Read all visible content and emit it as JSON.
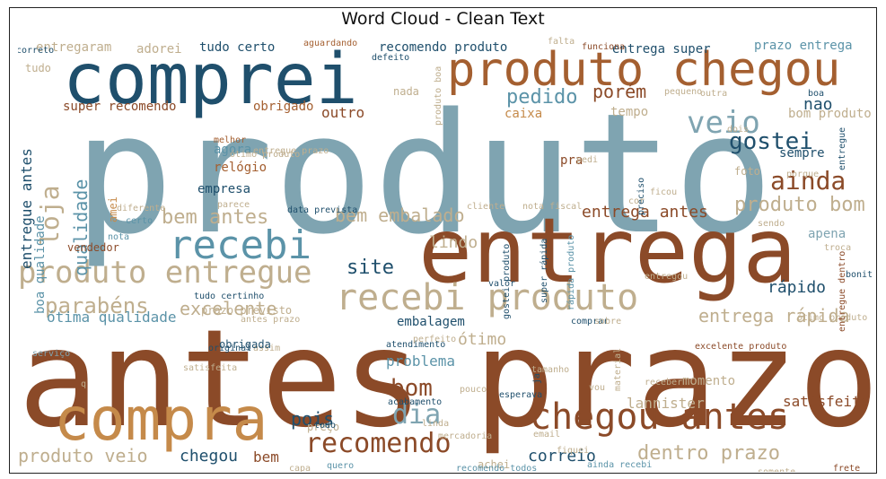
{
  "title": "Word Cloud - Clean Text",
  "palette": {
    "brown": "#8b4a28",
    "rust": "#a45f30",
    "tan": "#c58a4a",
    "beige": "#bfae8e",
    "lightbeige": "#d8cbb0",
    "navy": "#1f4f6c",
    "teal": "#5b93a8",
    "slate": "#7fa4b1",
    "lightblue": "#9ebdca"
  },
  "words": [
    "produto",
    "antes",
    "prazo",
    "entrega",
    "comprei",
    "produto chegou",
    "compra",
    "chegou antes",
    "recebi",
    "recebi produto",
    "produto entregue",
    "veio",
    "gostei",
    "ainda",
    "recomendo",
    "dia",
    "bom",
    "loja",
    "pedido",
    "porém",
    "nao",
    "bem antes",
    "produto bom",
    "bem embalado",
    "entrega antes",
    "site",
    "pois",
    "lannister",
    "dentro prazo",
    "produto veio",
    "correio",
    "chegou",
    "bem",
    "parabéns",
    "excelente",
    "ótima qualidade",
    "qualidade",
    "entregue antes",
    "boa qualidade",
    "super recomendo",
    "obrigado",
    "outro",
    "caixa",
    "tempo",
    "bom produto",
    "agora",
    "relógio",
    "empresa",
    "sempre",
    "pra",
    "entrega rápida",
    "rápido",
    "satisfeito",
    "lindo",
    "embalagem",
    "ótimo",
    "problema",
    "apena",
    "prazo entrega",
    "entrega super",
    "recomendo produto",
    "tudo certo",
    "adorei",
    "entregaram",
    "aguardando",
    "nada",
    "tudo",
    "correto",
    "vendedor",
    "amei",
    "melhor",
    "diferente",
    "certo",
    "nota",
    "foto",
    "porque",
    "troca",
    "ótimo produto",
    "prazo previsto",
    "antes prazo",
    "preço",
    "achei",
    "todo",
    "pouco",
    "vou",
    "receber",
    "momento",
    "esperava",
    "acabamento",
    "linda",
    "mercadoria",
    "satisfeita",
    "original",
    "assim",
    "perfeito",
    "atendimento",
    "comprar",
    "sobre",
    "excelente produto",
    "entregou",
    "bonito",
    "cor",
    "sendo",
    "nota fiscal",
    "cliente",
    "data prevista",
    "parece",
    "entregue prazo",
    "valor",
    "tudo certinho",
    "obrigada",
    "q",
    "capa",
    "quero",
    "recomendo todos",
    "ainda recebi",
    "frete",
    "somente",
    "funciona",
    "defeito",
    "produto boa",
    "pedi",
    "preciso",
    "ficou",
    "boa",
    "pequeno",
    "outra",
    "dois",
    "entregue",
    "entregue dentro",
    "rápida produto",
    "ótimo produto",
    "ja",
    "gostei produto",
    "super rápida",
    "material",
    "tamanho",
    "email",
    "fiquei",
    "serviço",
    "falta",
    "compro"
  ]
}
